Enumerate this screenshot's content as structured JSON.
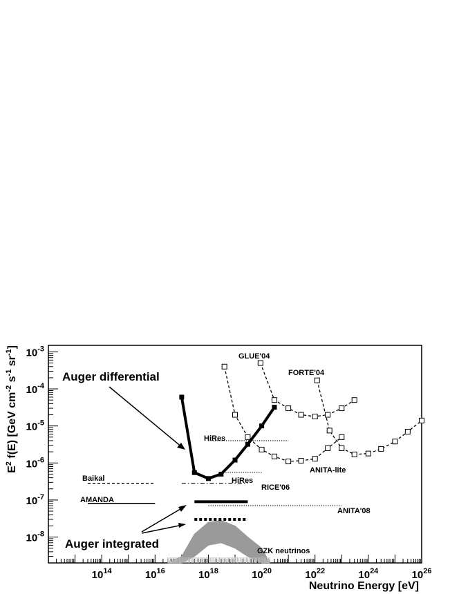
{
  "chart_data": {
    "type": "line",
    "xlabel": "Neutrino Energy [eV]",
    "ylabel": "E² f(E) [GeV cm⁻² s⁻¹ sr⁻¹]",
    "ylabel_parts": {
      "base": "E",
      "sup1": "2",
      "mid1": " f(E) [GeV cm",
      "sup2": "-2",
      "mid2": " s",
      "sup3": "-1",
      "mid3": " sr",
      "sup4": "-1",
      "end": "]"
    },
    "x_scale": "log",
    "y_scale": "log",
    "xlim": [
      1000000000000.0,
      1e+26
    ],
    "ylim": [
      2e-09,
      0.0015
    ],
    "x_tick_labels": [
      {
        "value": 100000000000000.0,
        "base": "10",
        "exp": "14"
      },
      {
        "value": 1e+16,
        "base": "10",
        "exp": "16"
      },
      {
        "value": 1e+18,
        "base": "10",
        "exp": "18"
      },
      {
        "value": 1e+20,
        "base": "10",
        "exp": "20"
      },
      {
        "value": 1e+22,
        "base": "10",
        "exp": "22"
      },
      {
        "value": 1e+24,
        "base": "10",
        "exp": "24"
      },
      {
        "value": 1e+26,
        "base": "10",
        "exp": "26"
      }
    ],
    "y_tick_labels": [
      {
        "value": 1e-08,
        "base": "10",
        "exp": "-8"
      },
      {
        "value": 1e-07,
        "base": "10",
        "exp": "-7"
      },
      {
        "value": 1e-06,
        "base": "10",
        "exp": "-6"
      },
      {
        "value": 1e-05,
        "base": "10",
        "exp": "-5"
      },
      {
        "value": 0.0001,
        "base": "10",
        "exp": "-4"
      },
      {
        "value": 0.001,
        "base": "10",
        "exp": "-3"
      }
    ],
    "series": [
      {
        "name": "Auger differential",
        "style": "solid-thick",
        "marker": "filled-square",
        "x": [
          1e+17,
          3e+17,
          1e+18,
          3e+18,
          1e+19,
          3e+19,
          1e+20,
          3e+20
        ],
        "y": [
          6e-05,
          5.5e-07,
          3.8e-07,
          5e-07,
          1.2e-06,
          3.2e-06,
          1e-05,
          3.2e-05
        ]
      },
      {
        "name": "GLUE'04",
        "style": "dashed",
        "marker": "open-square",
        "x": [
          9e+19,
          3e+20,
          1e+21,
          3e+21,
          1e+22,
          3e+22,
          1e+23,
          3e+23
        ],
        "y": [
          0.0005,
          5e-05,
          3e-05,
          2e-05,
          1.8e-05,
          2e-05,
          3e-05,
          5e-05
        ]
      },
      {
        "name": "FORTE'04",
        "style": "dashed",
        "marker": "open-square",
        "x": [
          1.2e+22,
          3.5e+22,
          1e+23,
          3e+23,
          1e+24,
          3e+24,
          1e+25,
          3e+25,
          1e+26
        ],
        "y": [
          0.00017,
          7.5e-06,
          2.5e-06,
          1.7e-06,
          1.8e-06,
          2.4e-06,
          3.8e-06,
          7e-06,
          1.4e-05
        ]
      },
      {
        "name": "ANITA-lite",
        "style": "dashed",
        "marker": "open-square",
        "x": [
          4e+18,
          1e+19,
          3e+19,
          1e+20,
          3e+20,
          1e+21,
          3e+21,
          1e+22,
          3e+22,
          1e+23
        ],
        "y": [
          0.0004,
          2e-05,
          5e-06,
          2.3e-06,
          1.5e-06,
          1.1e-06,
          1.15e-06,
          1.3e-06,
          2.5e-06,
          5e-06
        ]
      },
      {
        "name": "HiRes",
        "style": "dotted",
        "x": [
          1e+18,
          1e+21
        ],
        "y": [
          4e-06,
          4e-06
        ]
      },
      {
        "name": "HiRes",
        "style": "dotted",
        "x": [
          3e+18,
          1e+20
        ],
        "y": [
          5.5e-07,
          5.5e-07
        ]
      },
      {
        "name": "Baikal",
        "style": "dashed",
        "x": [
          30000000000000.0,
          1e+16
        ],
        "y": [
          2.8e-07,
          2.8e-07
        ]
      },
      {
        "name": "RICE'06",
        "style": "dashdot",
        "x": [
          1e+17,
          3e+19
        ],
        "y": [
          2.8e-07,
          2.8e-07
        ]
      },
      {
        "name": "AMANDA",
        "style": "solid",
        "x": [
          30000000000000.0,
          1e+16
        ],
        "y": [
          8e-08,
          8e-08
        ]
      },
      {
        "name": "ANITA'08",
        "style": "dotted",
        "x": [
          1e+18,
          1e+23
        ],
        "y": [
          7e-08,
          7e-08
        ]
      },
      {
        "name": "Auger integrated",
        "style": "solid-thick",
        "x": [
          3e+17,
          3e+19
        ],
        "y": [
          9e-08,
          9e-08
        ]
      },
      {
        "name": "Auger integrated",
        "style": "dashed-thick",
        "x": [
          3e+17,
          3e+19
        ],
        "y": [
          3e-08,
          3e-08
        ]
      },
      {
        "name": "GZK neutrinos",
        "style": "band",
        "x": [
          3e+16,
          1e+17,
          3e+17,
          1e+18,
          3e+18,
          1e+19,
          3e+19,
          1e+20,
          2e+20
        ],
        "y_low": [
          2e-09,
          2e-09,
          3e-09,
          6e-09,
          7e-09,
          5e-09,
          3e-09,
          2e-09,
          2e-09
        ],
        "y_high": [
          2e-09,
          3e-09,
          1.2e-08,
          2.5e-08,
          2.8e-08,
          2e-08,
          1e-08,
          5e-09,
          2e-09
        ]
      }
    ],
    "annotations": [
      {
        "text": "Auger differential"
      },
      {
        "text": "Auger integrated"
      },
      {
        "text": "GLUE'04"
      },
      {
        "text": "FORTE'04"
      },
      {
        "text": "HiRes"
      },
      {
        "text": "HiRes"
      },
      {
        "text": "ANITA-lite"
      },
      {
        "text": "RICE'06"
      },
      {
        "text": "Baikal"
      },
      {
        "text": "AMANDA"
      },
      {
        "text": "ANITA'08"
      },
      {
        "text": "GZK neutrinos"
      }
    ],
    "grid": false
  }
}
